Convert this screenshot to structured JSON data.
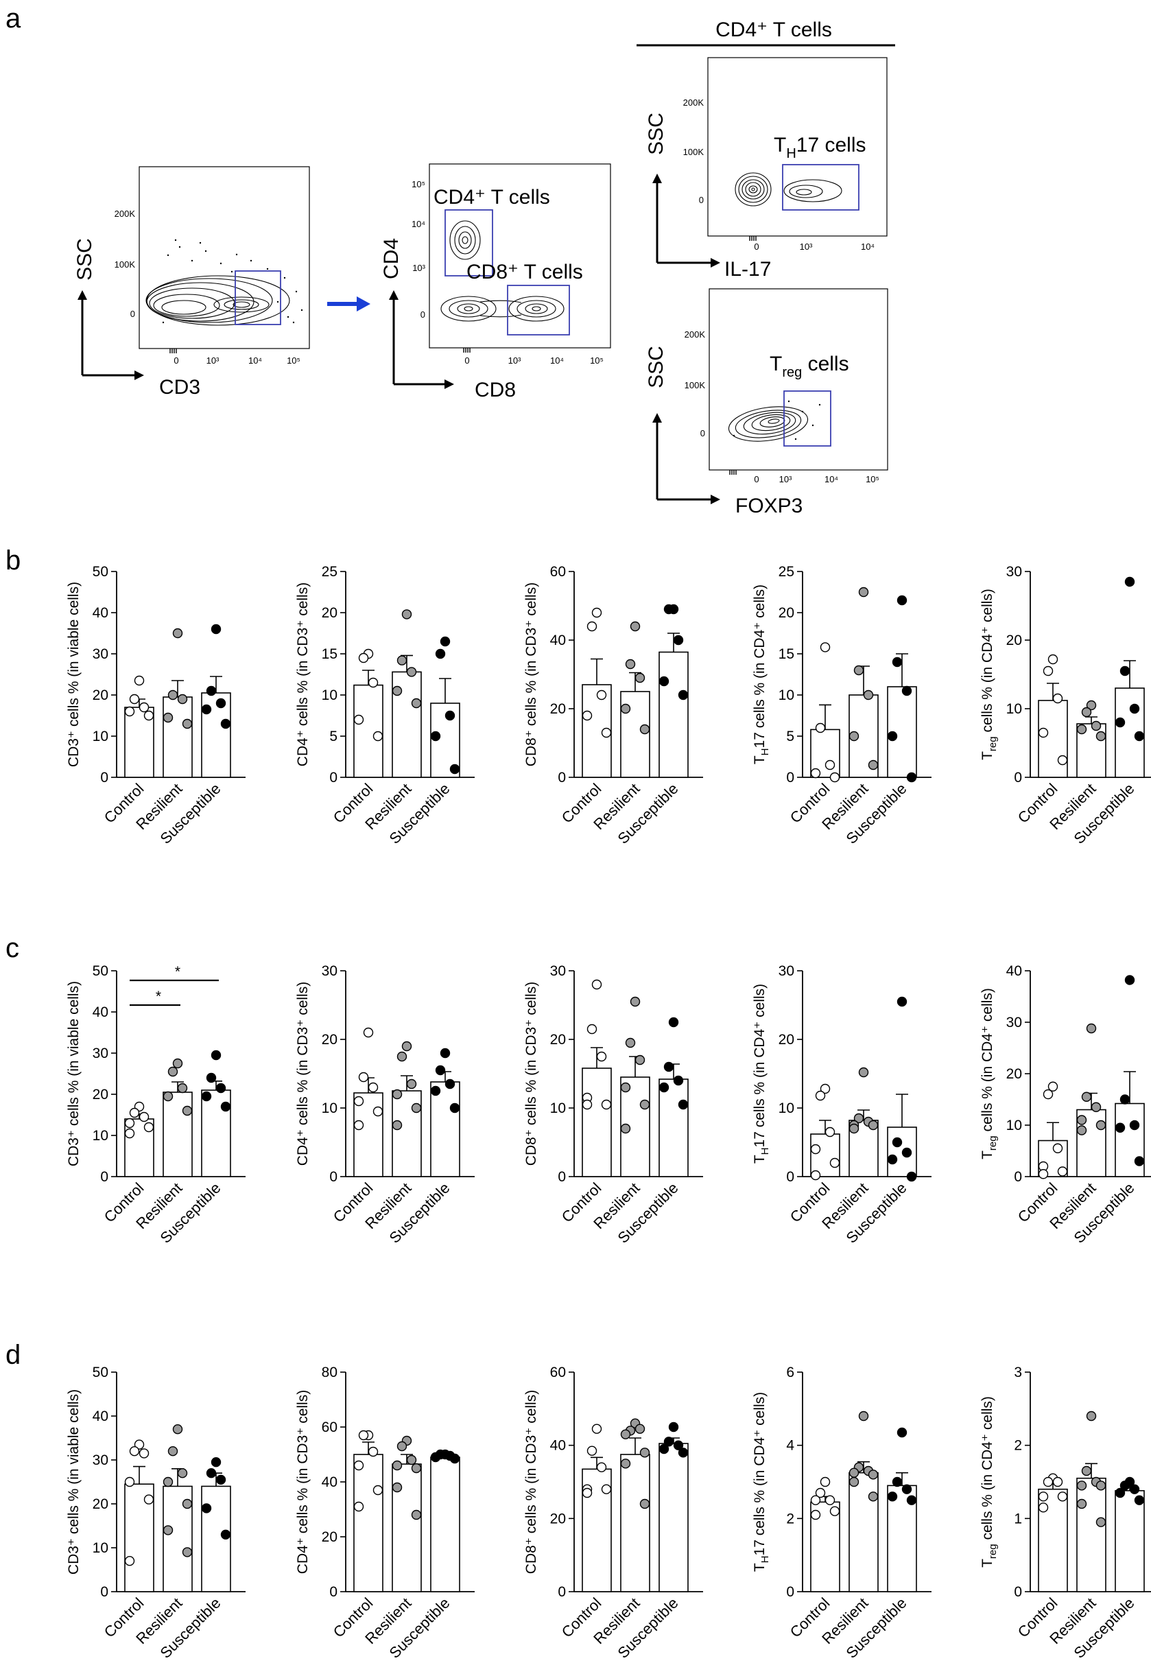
{
  "colors": {
    "gate": "#3b3fb0",
    "arrow": "#1a3fd6",
    "control_fill": "#ffffff",
    "resilient_fill": "#9a9a9a",
    "susceptible_fill": "#000000",
    "ink": "#000000"
  },
  "panel_letters": [
    "a",
    "b",
    "c",
    "d"
  ],
  "flow": {
    "header": "CD4⁺ T cells",
    "plots": [
      {
        "id": "cd3",
        "ylabel": "SSC",
        "xlabel": "CD3",
        "yticks": [
          "200K",
          "100K",
          "0"
        ],
        "xticks": [
          "0",
          "10³",
          "10⁴",
          "10⁵"
        ],
        "gate_label": ""
      },
      {
        "id": "cd4cd8",
        "ylabel": "CD4",
        "xlabel": "CD8",
        "yticks": [
          "10⁵",
          "10⁴",
          "10³",
          "0"
        ],
        "xticks": [
          "0",
          "10³",
          "10⁴",
          "10⁵"
        ],
        "gate_labels": [
          "CD4⁺ T cells",
          "CD8⁺ T cells"
        ]
      },
      {
        "id": "il17",
        "ylabel": "SSC",
        "xlabel": "IL-17",
        "yticks": [
          "200K",
          "100K",
          "0"
        ],
        "xticks": [
          "0",
          "10³",
          "10⁴"
        ],
        "gate_label_main": "T",
        "gate_label_sub": "H",
        "gate_label_rest": "17 cells"
      },
      {
        "id": "foxp3",
        "ylabel": "SSC",
        "xlabel": "FOXP3",
        "yticks": [
          "200K",
          "100K",
          "0"
        ],
        "xticks": [
          "0",
          "10³",
          "10⁴",
          "10⁵"
        ],
        "gate_label_main": "T",
        "gate_label_sub": "reg",
        "gate_label_rest": " cells"
      }
    ]
  },
  "chart_data": [
    {
      "type": "bar",
      "panel": "b",
      "ylabel": "CD3⁺ cells % (in viable cells)",
      "categories": [
        "Control",
        "Resilient",
        "Susceptible"
      ],
      "ylim": [
        0,
        50
      ],
      "yticks": [
        0,
        10,
        20,
        30,
        40,
        50
      ],
      "means": [
        17,
        19.5,
        20.5
      ],
      "sem": [
        2,
        4,
        4
      ],
      "points": [
        [
          23.5,
          19,
          17,
          16,
          15
        ],
        [
          35,
          20,
          19,
          14.5,
          13
        ],
        [
          36,
          21,
          18,
          16.5,
          13
        ]
      ]
    },
    {
      "type": "bar",
      "panel": "b",
      "ylabel": "CD4⁺ cells % (in CD3⁺ cells)",
      "categories": [
        "Control",
        "Resilient",
        "Susceptible"
      ],
      "ylim": [
        0,
        25
      ],
      "yticks": [
        0,
        5,
        10,
        15,
        20,
        25
      ],
      "means": [
        11.2,
        12.8,
        9
      ],
      "sem": [
        1.8,
        2,
        3
      ],
      "points": [
        [
          15,
          14.5,
          11.5,
          7,
          5
        ],
        [
          19.8,
          14.2,
          12.8,
          10.5,
          9
        ],
        [
          16.5,
          15,
          7.5,
          5,
          1
        ]
      ]
    },
    {
      "type": "bar",
      "panel": "b",
      "ylabel": "CD8⁺ cells % (in CD3⁺ cells)",
      "categories": [
        "Control",
        "Resilient",
        "Susceptible"
      ],
      "ylim": [
        0,
        60
      ],
      "yticks": [
        0,
        20,
        40,
        60
      ],
      "means": [
        27,
        25,
        36.5
      ],
      "sem": [
        7.5,
        5.5,
        5.5
      ],
      "points": [
        [
          48,
          44,
          24,
          18,
          13
        ],
        [
          44,
          33,
          29,
          20,
          14
        ],
        [
          49,
          49,
          40,
          28,
          24
        ]
      ]
    },
    {
      "type": "bar",
      "panel": "b",
      "ylabel": "T_H17 cells % (in CD4⁺ cells)",
      "categories": [
        "Control",
        "Resilient",
        "Susceptible"
      ],
      "ylim": [
        0,
        25
      ],
      "yticks": [
        0,
        5,
        10,
        15,
        20,
        25
      ],
      "means": [
        5.8,
        10,
        11
      ],
      "sem": [
        3,
        3.5,
        4
      ],
      "points": [
        [
          15.8,
          6,
          1.5,
          0.5,
          0
        ],
        [
          22.5,
          13,
          10,
          5,
          1.5
        ],
        [
          21.5,
          14,
          10.5,
          5,
          0
        ]
      ]
    },
    {
      "type": "bar",
      "panel": "b",
      "ylabel": "T_reg cells % (in CD4⁺ cells)",
      "categories": [
        "Control",
        "Resilient",
        "Susceptible"
      ],
      "ylim": [
        0,
        30
      ],
      "yticks": [
        0,
        10,
        20,
        30
      ],
      "means": [
        11.2,
        7.8,
        13
      ],
      "sem": [
        2.5,
        1,
        4
      ],
      "points": [
        [
          17.2,
          15.5,
          11.5,
          6.5,
          2.5
        ],
        [
          10.5,
          9.5,
          7.5,
          7,
          6
        ],
        [
          28.5,
          15.5,
          10,
          8,
          6
        ]
      ]
    },
    {
      "type": "bar",
      "panel": "c",
      "ylabel": "CD3⁺ cells % (in viable cells)",
      "categories": [
        "Control",
        "Resilient",
        "Susceptible"
      ],
      "ylim": [
        0,
        50
      ],
      "yticks": [
        0,
        10,
        20,
        30,
        40,
        50
      ],
      "means": [
        14,
        20.5,
        21
      ],
      "sem": [
        1.2,
        2.5,
        2.2
      ],
      "points": [
        [
          17,
          15.5,
          14.5,
          13,
          12,
          10.5
        ],
        [
          27.5,
          25.5,
          21.5,
          19.5,
          16
        ],
        [
          29.5,
          24,
          21.5,
          19.5,
          17
        ]
      ],
      "significance": [
        {
          "from": 0,
          "to": 1,
          "label": "*"
        },
        {
          "from": 0,
          "to": 2,
          "label": "*"
        }
      ]
    },
    {
      "type": "bar",
      "panel": "c",
      "ylabel": "CD4⁺ cells % (in CD3⁺ cells)",
      "categories": [
        "Control",
        "Resilient",
        "Susceptible"
      ],
      "ylim": [
        0,
        30
      ],
      "yticks": [
        0,
        10,
        20,
        30
      ],
      "means": [
        12.2,
        12.5,
        13.8
      ],
      "sem": [
        2.2,
        2.2,
        1.5
      ],
      "points": [
        [
          21,
          14.5,
          13,
          11,
          9.5,
          7.5
        ],
        [
          19,
          17.5,
          13.5,
          12,
          10,
          7.5
        ],
        [
          18,
          15.5,
          13.5,
          12.5,
          10
        ]
      ]
    },
    {
      "type": "bar",
      "panel": "c",
      "ylabel": "CD8⁺ cells % (in CD3⁺ cells)",
      "categories": [
        "Control",
        "Resilient",
        "Susceptible"
      ],
      "ylim": [
        0,
        30
      ],
      "yticks": [
        0,
        10,
        20,
        30
      ],
      "means": [
        15.8,
        14.5,
        14.2
      ],
      "sem": [
        3,
        3,
        2.2
      ],
      "points": [
        [
          28,
          21.5,
          17.5,
          11.5,
          10.5,
          10.5
        ],
        [
          25.5,
          19.5,
          17,
          13,
          10.5,
          7
        ],
        [
          22.5,
          16,
          14,
          13,
          10.5
        ]
      ]
    },
    {
      "type": "bar",
      "panel": "c",
      "ylabel": "T_H17 cells % (in CD4⁺ cells)",
      "categories": [
        "Control",
        "Resilient",
        "Susceptible"
      ],
      "ylim": [
        0,
        30
      ],
      "yticks": [
        0,
        10,
        20,
        30
      ],
      "means": [
        6.2,
        8.2,
        7.2
      ],
      "sem": [
        2,
        1.5,
        4.8
      ],
      "points": [
        [
          12.8,
          11.8,
          6.5,
          4,
          2,
          0.2
        ],
        [
          15.2,
          8.5,
          8,
          7.5,
          7.5,
          7
        ],
        [
          25.5,
          5,
          3.5,
          2.5,
          0
        ]
      ]
    },
    {
      "type": "bar",
      "panel": "c",
      "ylabel": "T_reg cells % (in CD4⁺ cells)",
      "categories": [
        "Control",
        "Resilient",
        "Susceptible"
      ],
      "ylim": [
        0,
        40
      ],
      "yticks": [
        0,
        10,
        20,
        30,
        40
      ],
      "means": [
        7,
        13,
        14.2
      ],
      "sem": [
        3.5,
        3.2,
        6.2
      ],
      "points": [
        [
          17.5,
          16,
          5.5,
          2,
          1,
          0.5
        ],
        [
          28.8,
          15.5,
          13.5,
          11,
          10,
          9
        ],
        [
          38.2,
          15,
          10,
          9.5,
          3
        ]
      ]
    },
    {
      "type": "bar",
      "panel": "d",
      "ylabel": "CD3⁺ cells % (in viable cells)",
      "categories": [
        "Control",
        "Resilient",
        "Susceptible"
      ],
      "ylim": [
        0,
        50
      ],
      "yticks": [
        0,
        10,
        20,
        30,
        40,
        50
      ],
      "means": [
        24.5,
        24,
        24
      ],
      "sem": [
        4,
        4,
        3
      ],
      "points": [
        [
          33.5,
          32,
          31.5,
          25,
          21,
          7
        ],
        [
          37,
          32,
          27,
          25,
          20,
          14,
          9
        ],
        [
          29.5,
          27,
          25.5,
          19,
          13
        ]
      ]
    },
    {
      "type": "bar",
      "panel": "d",
      "ylabel": "CD4⁺ cells % (in CD3⁺ cells)",
      "categories": [
        "Control",
        "Resilient",
        "Susceptible"
      ],
      "ylim": [
        0,
        80
      ],
      "yticks": [
        0,
        20,
        40,
        60,
        80
      ],
      "means": [
        50,
        46.5,
        49
      ],
      "sem": [
        4.5,
        3.5,
        0.8
      ],
      "points": [
        [
          57,
          57,
          51,
          46,
          37,
          31
        ],
        [
          55,
          53,
          48,
          46,
          45,
          38,
          28
        ],
        [
          50,
          50,
          49.5,
          49,
          48.5
        ]
      ]
    },
    {
      "type": "bar",
      "panel": "d",
      "ylabel": "CD8⁺ cells % (in CD3⁺ cells)",
      "categories": [
        "Control",
        "Resilient",
        "Susceptible"
      ],
      "ylim": [
        0,
        60
      ],
      "yticks": [
        0,
        20,
        40,
        60
      ],
      "means": [
        33.5,
        37.5,
        40.5
      ],
      "sem": [
        3.2,
        4.5,
        1.5
      ],
      "points": [
        [
          44.5,
          38.5,
          34,
          28,
          28,
          27
        ],
        [
          46,
          44,
          44.5,
          43,
          38,
          35,
          24
        ],
        [
          45,
          41,
          40,
          39,
          38
        ]
      ]
    },
    {
      "type": "bar",
      "panel": "d",
      "ylabel": "T_H17 cells % (in CD4⁺ cells)",
      "categories": [
        "Control",
        "Resilient",
        "Susceptible"
      ],
      "ylim": [
        0,
        6
      ],
      "yticks": [
        0,
        2,
        4,
        6
      ],
      "means": [
        2.45,
        3.25,
        2.9
      ],
      "sem": [
        0.15,
        0.3,
        0.35
      ],
      "points": [
        [
          3,
          2.7,
          2.5,
          2.5,
          2.2,
          2.1
        ],
        [
          4.8,
          3.4,
          3.3,
          3.25,
          3.2,
          3,
          2.6
        ],
        [
          4.35,
          3,
          2.8,
          2.6,
          2.5
        ]
      ]
    },
    {
      "type": "bar",
      "panel": "d",
      "ylabel": "T_reg cells % (in CD4⁺ cells)",
      "categories": [
        "Control",
        "Resilient",
        "Susceptible"
      ],
      "ylim": [
        0,
        3
      ],
      "yticks": [
        0,
        1,
        2,
        3
      ],
      "means": [
        1.4,
        1.55,
        1.38
      ],
      "sem": [
        0.1,
        0.2,
        0.07
      ],
      "points": [
        [
          1.55,
          1.5,
          1.5,
          1.3,
          1.3,
          1.15
        ],
        [
          2.4,
          1.65,
          1.5,
          1.45,
          1.45,
          1.2,
          0.95
        ],
        [
          1.5,
          1.45,
          1.4,
          1.35,
          1.25
        ]
      ]
    }
  ]
}
